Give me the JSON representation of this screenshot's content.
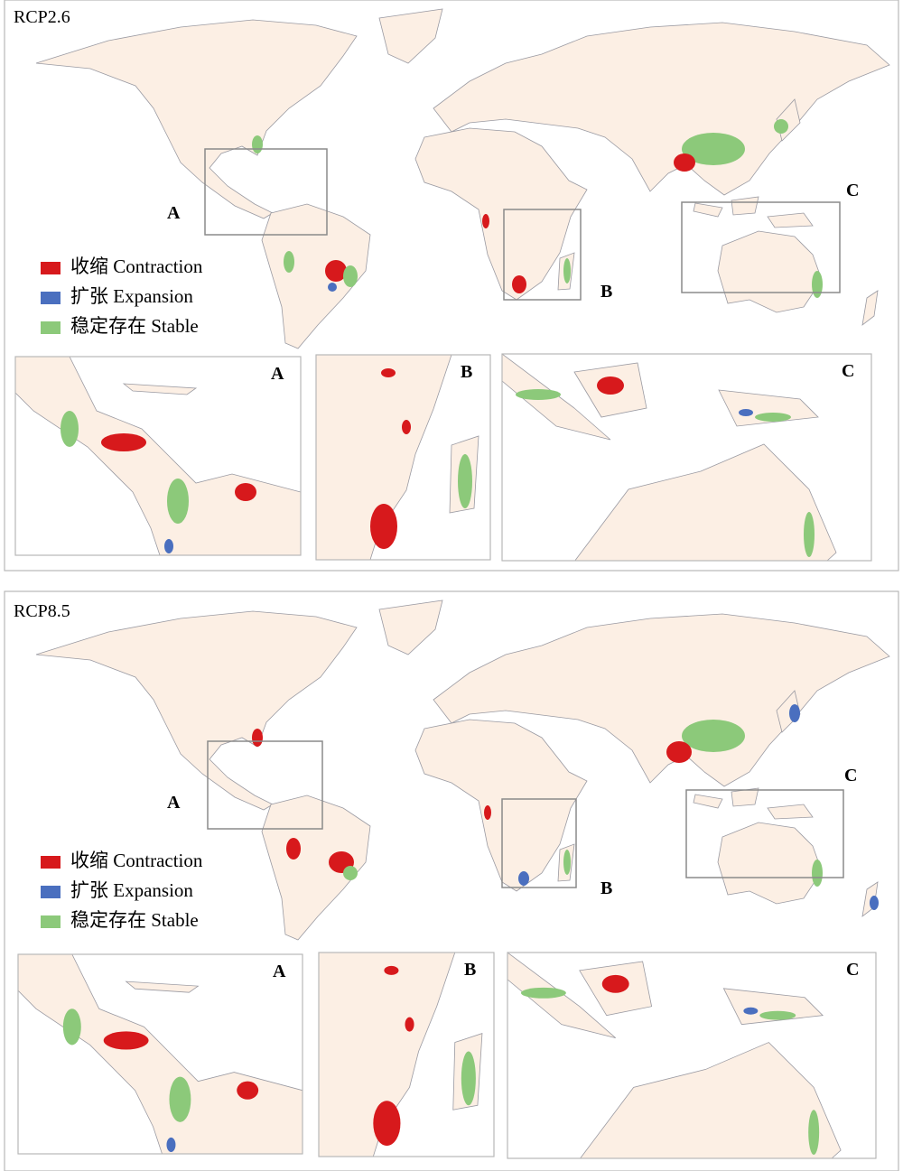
{
  "panels": [
    {
      "title": "RCP2.6",
      "legend": [
        {
          "label": "收缩 Contraction",
          "color": "#d7191c"
        },
        {
          "label": "扩张 Expansion",
          "color": "#4a6fbf"
        },
        {
          "label": "稳定存在 Stable",
          "color": "#8cc97a"
        }
      ],
      "box_labels": [
        "A",
        "B",
        "C"
      ],
      "inset_labels": [
        "A",
        "B",
        "C"
      ]
    },
    {
      "title": "RCP8.5",
      "legend": [
        {
          "label": "收缩 Contraction",
          "color": "#d7191c"
        },
        {
          "label": "扩张 Expansion",
          "color": "#4a6fbf"
        },
        {
          "label": "稳定存在 Stable",
          "color": "#8cc97a"
        }
      ],
      "box_labels": [
        "A",
        "B",
        "C"
      ],
      "inset_labels": [
        "A",
        "B",
        "C"
      ]
    }
  ]
}
